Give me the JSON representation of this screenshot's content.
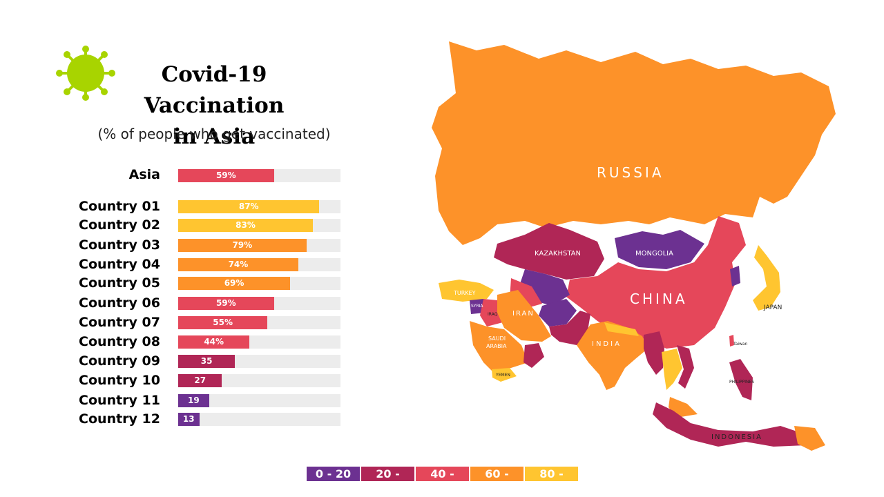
{
  "title": {
    "line1": "Covid-19 Vaccination",
    "line2": "in Asia"
  },
  "subtitle": "(% of people who get vaccinated)",
  "icon": "virus-icon",
  "colors": {
    "c0_20": "#6c3191",
    "c20_40": "#b02656",
    "c40_60": "#e5475a",
    "c60_80": "#fd9229",
    "c80_100": "#ffc530",
    "track": "#ececec"
  },
  "summary": {
    "label": "Asia",
    "value": 59,
    "value_label": "59%"
  },
  "countries": [
    {
      "label": "Country 01",
      "value": 87,
      "value_label": "87%"
    },
    {
      "label": "Country 02",
      "value": 83,
      "value_label": "83%"
    },
    {
      "label": "Country 03",
      "value": 79,
      "value_label": "79%"
    },
    {
      "label": "Country 04",
      "value": 74,
      "value_label": "74%"
    },
    {
      "label": "Country 05",
      "value": 69,
      "value_label": "69%"
    },
    {
      "label": "Country 06",
      "value": 59,
      "value_label": "59%"
    },
    {
      "label": "Country 07",
      "value": 55,
      "value_label": "55%"
    },
    {
      "label": "Country 08",
      "value": 44,
      "value_label": "44%"
    },
    {
      "label": "Country 09",
      "value": 35,
      "value_label": "35"
    },
    {
      "label": "Country 10",
      "value": 27,
      "value_label": "27"
    },
    {
      "label": "Country 11",
      "value": 19,
      "value_label": "19"
    },
    {
      "label": "Country 12",
      "value": 13,
      "value_label": "13"
    }
  ],
  "map_labels": {
    "russia": "RUSSIA",
    "kazakhstan": "KAZAKHSTAN",
    "mongolia": "MONGOLIA",
    "china": "CHINA",
    "turkey": "TURKEY",
    "syria": "SYRIA",
    "iraq": "IRAQ",
    "iran": "IRAN",
    "saudi1": "SAUDI",
    "saudi2": "ARABIA",
    "yemen": "YEMEN",
    "india": "INDIA",
    "japan": "JAPAN",
    "taiwan": "Taiwan",
    "philippines": "PHILIPPINES",
    "indonesia": "INDONESIA"
  },
  "legend": [
    {
      "label": "0 - 20",
      "color": "#6c3191"
    },
    {
      "label": "20 -",
      "color": "#b02656"
    },
    {
      "label": "40 -",
      "color": "#e5475a"
    },
    {
      "label": "60 -",
      "color": "#fd9229"
    },
    {
      "label": "80 -",
      "color": "#ffc530"
    }
  ]
}
